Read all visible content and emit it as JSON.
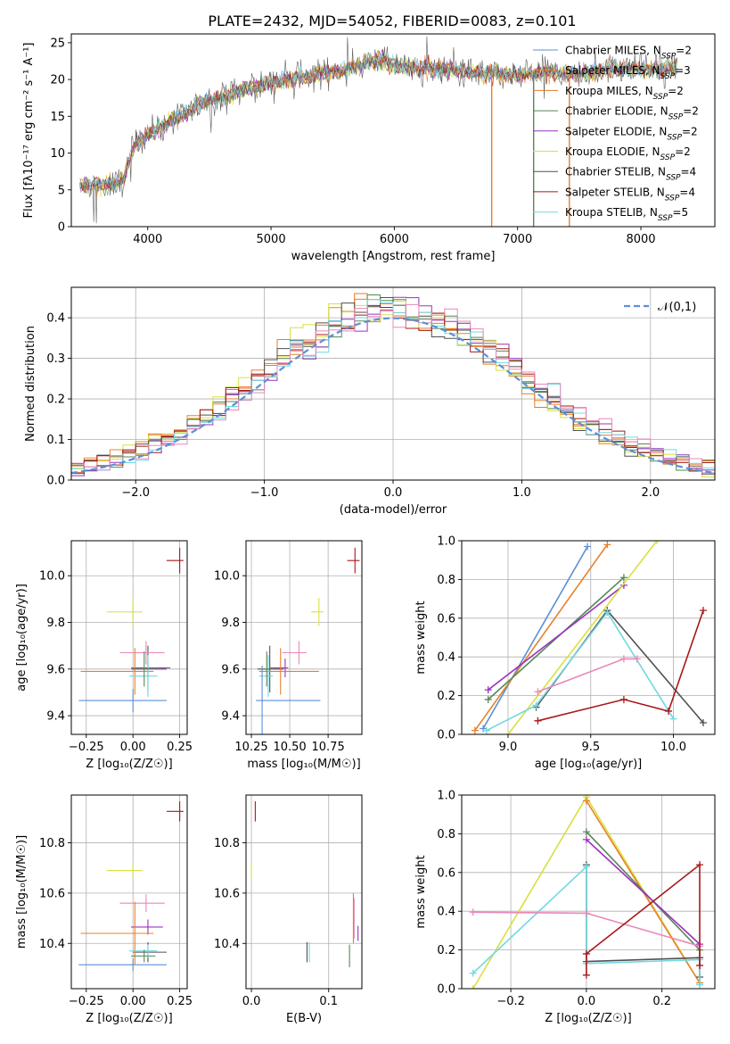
{
  "figure": {
    "title": "PLATE=2432, MJD=54052, FIBERID=0083, z=0.101"
  },
  "palette": {
    "series_colors": [
      "#5b8fd8",
      "#e8802a",
      "#e87a22",
      "#558855",
      "#9b30c0",
      "#d8e040",
      "#505050",
      "#a81818",
      "#70d8e0",
      "#e888b8"
    ]
  },
  "chart_data": [
    {
      "type": "line",
      "id": "spectrum",
      "title": "PLATE=2432, MJD=54052, FIBERID=0083, z=0.101",
      "xlabel": "wavelength [Angstrom, rest frame]",
      "ylabel": "Flux [fλ10⁻¹⁷ erg cm⁻² s⁻¹ A⁻¹]",
      "xlim": [
        3380,
        8600
      ],
      "ylim": [
        0,
        26.2
      ],
      "xticks": [
        4000,
        5000,
        6000,
        7000,
        8000
      ],
      "yticks": [
        0,
        5,
        10,
        15,
        20,
        25
      ],
      "grid": false,
      "legend_position": "right",
      "series": [
        {
          "name": "Chabrier MILES, N_SSP=2",
          "color": "#5b8fd8"
        },
        {
          "name": "Salpeter MILES, N_SSP=3",
          "color": "#e8802a"
        },
        {
          "name": "Kroupa MILES, N_SSP=2",
          "color": "#e87a22"
        },
        {
          "name": "Chabrier ELODIE, N_SSP=2",
          "color": "#558855"
        },
        {
          "name": "Salpeter ELODIE, N_SSP=2",
          "color": "#9b30c0"
        },
        {
          "name": "Kroupa ELODIE, N_SSP=2",
          "color": "#d8e040"
        },
        {
          "name": "Chabrier STELIB, N_SSP=4",
          "color": "#505050"
        },
        {
          "name": "Salpeter STELIB, N_SSP=4",
          "color": "#a81818"
        },
        {
          "name": "Kroupa STELIB, N_SSP=5",
          "color": "#70d8e0"
        }
      ],
      "continuum_points": [
        [
          3450,
          5.5
        ],
        [
          3550,
          5.8
        ],
        [
          3650,
          5.6
        ],
        [
          3800,
          6.2
        ],
        [
          3900,
          11.5
        ],
        [
          4000,
          12.5
        ],
        [
          4150,
          14.0
        ],
        [
          4300,
          15.2
        ],
        [
          4450,
          17.0
        ],
        [
          4600,
          17.5
        ],
        [
          4800,
          18.8
        ],
        [
          5000,
          19.5
        ],
        [
          5200,
          20.2
        ],
        [
          5400,
          20.8
        ],
        [
          5600,
          21.4
        ],
        [
          5800,
          22.5
        ],
        [
          5900,
          22.8
        ],
        [
          6000,
          21.8
        ],
        [
          6200,
          21.6
        ],
        [
          6400,
          21.3
        ],
        [
          6600,
          21.0
        ],
        [
          6800,
          20.8
        ],
        [
          7000,
          20.6
        ],
        [
          7200,
          21.0
        ],
        [
          7400,
          20.7
        ],
        [
          7600,
          21.0
        ],
        [
          7800,
          21.6
        ],
        [
          8000,
          21.4
        ],
        [
          8200,
          21.6
        ],
        [
          8300,
          21.7
        ]
      ],
      "spikes": [
        {
          "x": 6790,
          "color": "#e8802a"
        },
        {
          "x": 7420,
          "color": "#e8802a"
        },
        {
          "x": 7130,
          "color": "#558855"
        }
      ]
    },
    {
      "type": "histogram",
      "id": "residuals",
      "xlabel": "(data-model)/error",
      "ylabel": "Normed distribution",
      "xlim": [
        -2.5,
        2.5
      ],
      "ylim": [
        0,
        0.475
      ],
      "xticks": [
        -2,
        -1,
        0,
        1,
        2
      ],
      "yticks": [
        0.0,
        0.1,
        0.2,
        0.3,
        0.4
      ],
      "grid": true,
      "legend": {
        "label": "𝒩(0,1)",
        "position": "top-right",
        "color": "#5b8fd8"
      },
      "bin_width": 0.1
    },
    {
      "type": "scatter",
      "id": "age-vs-Z",
      "xlabel": "Z [log₁₀(Z/Z☉)]",
      "ylabel": "age  [log₁₀(age/yr)]",
      "xlim": [
        -0.33,
        0.29
      ],
      "ylim": [
        9.32,
        10.15
      ],
      "xticks": [
        -0.25,
        0.0,
        0.25
      ],
      "yticks": [
        9.4,
        9.6,
        9.8,
        10.0
      ],
      "grid": true,
      "points": [
        {
          "x": 0.25,
          "y": 10.065,
          "xerr": [
            0.07,
            0.02
          ],
          "yerr": 0.11,
          "color": "#a81818"
        },
        {
          "x": 0.0,
          "y": 9.845,
          "xerr": [
            0.14,
            0.05
          ],
          "yerr": 0.12,
          "color": "#d8e040"
        },
        {
          "x": 0.08,
          "y": 9.6,
          "xerr": [
            0.08,
            0.1
          ],
          "yerr": 0.2,
          "color": "#505050"
        },
        {
          "x": 0.08,
          "y": 9.605,
          "xerr": [
            0.09,
            0.12
          ],
          "yerr": 0.08,
          "color": "#9b30c0"
        },
        {
          "x": 0.07,
          "y": 9.67,
          "xerr": [
            0.14,
            0.1
          ],
          "yerr": 0.1,
          "color": "#e888b8"
        },
        {
          "x": 0.01,
          "y": 9.59,
          "xerr": [
            0.29,
            0.1
          ],
          "yerr": 0.2,
          "color": "#e8802a"
        },
        {
          "x": 0.08,
          "y": 9.57,
          "xerr": [
            0.1,
            0.05
          ],
          "yerr": 0.18,
          "color": "#70d8e0"
        },
        {
          "x": 0.06,
          "y": 9.6,
          "xerr": [
            0.07,
            0.06
          ],
          "yerr": 0.15,
          "color": "#558855"
        },
        {
          "x": 0.0,
          "y": 9.465,
          "xerr": [
            0.29,
            0.18
          ],
          "yerr": 0.1,
          "color": "#5b8fd8"
        }
      ]
    },
    {
      "type": "scatter",
      "id": "age-vs-mass",
      "xlabel": "mass [log₁₀(M/M☉)]",
      "ylabel": "",
      "xlim": [
        10.215,
        10.97
      ],
      "ylim": [
        9.32,
        10.15
      ],
      "xticks": [
        10.25,
        10.5,
        10.75
      ],
      "yticks": [
        9.4,
        9.6,
        9.8,
        10.0
      ],
      "grid": true,
      "points": [
        {
          "x": 10.925,
          "y": 10.065,
          "xerr": [
            0.05,
            0.03
          ],
          "yerr": 0.11,
          "color": "#a81818"
        },
        {
          "x": 10.69,
          "y": 9.845,
          "xerr": [
            0.05,
            0.03
          ],
          "yerr": 0.12,
          "color": "#d8e040"
        },
        {
          "x": 10.37,
          "y": 9.6,
          "xerr": [
            0.08,
            0.09
          ],
          "yerr": 0.2,
          "color": "#505050"
        },
        {
          "x": 10.47,
          "y": 9.605,
          "xerr": [
            0.1,
            0.02
          ],
          "yerr": 0.08,
          "color": "#9b30c0"
        },
        {
          "x": 10.56,
          "y": 9.67,
          "xerr": [
            0.11,
            0.05
          ],
          "yerr": 0.1,
          "color": "#e888b8"
        },
        {
          "x": 10.44,
          "y": 9.59,
          "xerr": [
            0.14,
            0.25
          ],
          "yerr": 0.2,
          "color": "#e8802a"
        },
        {
          "x": 10.36,
          "y": 9.57,
          "xerr": [
            0.06,
            0.03
          ],
          "yerr": 0.18,
          "color": "#70d8e0"
        },
        {
          "x": 10.35,
          "y": 9.6,
          "xerr": [
            0.04,
            0.05
          ],
          "yerr": 0.15,
          "color": "#558855"
        },
        {
          "x": 10.32,
          "y": 9.465,
          "xerr": [
            0.04,
            0.38
          ],
          "yerr": 0.3,
          "color": "#5b8fd8"
        }
      ]
    },
    {
      "type": "line",
      "id": "weight-vs-age",
      "xlabel": "age  [log₁₀(age/yr)]",
      "ylabel": "mass weight",
      "xlim": [
        8.72,
        10.25
      ],
      "ylim": [
        0,
        1.0
      ],
      "xticks": [
        9.0,
        9.5,
        10.0
      ],
      "yticks": [
        0.0,
        0.2,
        0.4,
        0.6,
        0.8,
        1.0
      ],
      "grid": true,
      "series": [
        {
          "color": "#5b8fd8",
          "x": [
            8.85,
            9.48
          ],
          "y": [
            0.03,
            0.97
          ]
        },
        {
          "color": "#e8802a",
          "x": [
            8.8,
            9.6
          ],
          "y": [
            0.02,
            0.98
          ]
        },
        {
          "color": "#558855",
          "x": [
            8.88,
            9.7
          ],
          "y": [
            0.18,
            0.81
          ]
        },
        {
          "color": "#9b30c0",
          "x": [
            8.88,
            9.7
          ],
          "y": [
            0.23,
            0.77
          ]
        },
        {
          "color": "#d8e040",
          "x": [
            9.0,
            9.9
          ],
          "y": [
            0.0,
            1.0
          ]
        },
        {
          "color": "#505050",
          "x": [
            9.17,
            9.6,
            10.18
          ],
          "y": [
            0.14,
            0.64,
            0.06
          ]
        },
        {
          "color": "#70d8e0",
          "x": [
            8.87,
            9.17,
            9.6,
            10.0
          ],
          "y": [
            0.02,
            0.15,
            0.63,
            0.08
          ]
        },
        {
          "color": "#e888b8",
          "x": [
            9.18,
            9.7,
            9.78
          ],
          "y": [
            0.22,
            0.39,
            0.39
          ]
        },
        {
          "color": "#a81818",
          "x": [
            9.18,
            9.7,
            9.97,
            10.18
          ],
          "y": [
            0.07,
            0.18,
            0.12,
            0.64
          ]
        }
      ]
    },
    {
      "type": "scatter",
      "id": "mass-vs-Z",
      "xlabel": "Z [log₁₀(Z/Z☉)]",
      "ylabel": "mass [log₁₀(M/M☉)]",
      "xlim": [
        -0.33,
        0.29
      ],
      "ylim": [
        10.22,
        10.99
      ],
      "xticks": [
        -0.25,
        0.0,
        0.25
      ],
      "yticks": [
        10.4,
        10.6,
        10.8
      ],
      "grid": true,
      "points": [
        {
          "x": 0.25,
          "y": 10.925,
          "xerr": [
            0.07,
            0.02
          ],
          "yerr": 0.08,
          "color": "#a81818"
        },
        {
          "x": 0.0,
          "y": 10.69,
          "xerr": [
            0.14,
            0.05
          ],
          "yerr": 0.06,
          "color": "#d8e040"
        },
        {
          "x": 0.08,
          "y": 10.365,
          "xerr": [
            0.08,
            0.1
          ],
          "yerr": 0.08,
          "color": "#505050"
        },
        {
          "x": 0.08,
          "y": 10.465,
          "xerr": [
            0.09,
            0.08
          ],
          "yerr": 0.06,
          "color": "#9b30c0"
        },
        {
          "x": 0.07,
          "y": 10.56,
          "xerr": [
            0.14,
            0.1
          ],
          "yerr": 0.07,
          "color": "#e888b8"
        },
        {
          "x": 0.01,
          "y": 10.44,
          "xerr": [
            0.29,
            0.1
          ],
          "yerr": 0.25,
          "color": "#e8802a"
        },
        {
          "x": 0.08,
          "y": 10.37,
          "xerr": [
            0.1,
            0.05
          ],
          "yerr": 0.05,
          "color": "#70d8e0"
        },
        {
          "x": 0.06,
          "y": 10.35,
          "xerr": [
            0.07,
            0.06
          ],
          "yerr": 0.05,
          "color": "#558855"
        },
        {
          "x": 0.0,
          "y": 10.315,
          "xerr": [
            0.29,
            0.18
          ],
          "yerr": 0.05,
          "color": "#5b8fd8"
        }
      ]
    },
    {
      "type": "scatter",
      "id": "mass-vs-ebv",
      "xlabel": "E(B-V)",
      "ylabel": "",
      "xlim": [
        -0.007,
        0.143
      ],
      "ylim": [
        10.22,
        10.99
      ],
      "xticks": [
        0.0,
        0.1
      ],
      "yticks": [
        10.4,
        10.6,
        10.8
      ],
      "grid": true,
      "points": [
        {
          "x": 0.005,
          "y": 10.925,
          "yerr": 0.08,
          "color": "#a81818"
        },
        {
          "x": 0.0,
          "y": 10.69,
          "yerr": 0.06,
          "color": "#d8e040"
        },
        {
          "x": 0.072,
          "y": 10.365,
          "yerr": 0.08,
          "color": "#505050"
        },
        {
          "x": 0.138,
          "y": 10.44,
          "yerr": 0.06,
          "color": "#9b30c0"
        },
        {
          "x": 0.133,
          "y": 10.5,
          "yerr": 0.16,
          "color": "#e888b8"
        },
        {
          "x": 0.132,
          "y": 10.5,
          "yerr": 0.2,
          "color": "#e8802a"
        },
        {
          "x": 0.075,
          "y": 10.365,
          "yerr": 0.08,
          "color": "#70d8e0"
        },
        {
          "x": 0.127,
          "y": 10.35,
          "yerr": 0.09,
          "color": "#558855"
        }
      ]
    },
    {
      "type": "line",
      "id": "weight-vs-Z",
      "xlabel": "Z [log₁₀(Z/Z☉)]",
      "ylabel": "mass weight",
      "xlim": [
        -0.33,
        0.34
      ],
      "ylim": [
        0,
        1.0
      ],
      "xticks": [
        -0.2,
        0.0,
        0.2
      ],
      "yticks": [
        0.0,
        0.2,
        0.4,
        0.6,
        0.8,
        1.0
      ],
      "grid": true,
      "series": [
        {
          "color": "#d8e040",
          "x": [
            -0.3,
            0.0,
            0.3
          ],
          "y": [
            0.0,
            0.99,
            0.03
          ]
        },
        {
          "color": "#e8802a",
          "x": [
            0.0,
            0.3
          ],
          "y": [
            0.97,
            0.03
          ]
        },
        {
          "color": "#558855",
          "x": [
            0.0,
            0.3,
            0.3
          ],
          "y": [
            0.81,
            0.2,
            0.16
          ]
        },
        {
          "color": "#9b30c0",
          "x": [
            0.0,
            0.3
          ],
          "y": [
            0.77,
            0.23
          ]
        },
        {
          "color": "#505050",
          "x": [
            0.0,
            0.0,
            0.3,
            0.3
          ],
          "y": [
            0.64,
            0.14,
            0.16,
            0.06
          ]
        },
        {
          "color": "#70d8e0",
          "x": [
            -0.3,
            0.0,
            0.0,
            0.3,
            0.3
          ],
          "y": [
            0.08,
            0.63,
            0.13,
            0.15,
            0.02
          ]
        },
        {
          "color": "#e888b8",
          "x": [
            -0.3,
            0.0,
            0.3
          ],
          "y": [
            0.395,
            0.39,
            0.22
          ]
        },
        {
          "color": "#a81818",
          "x": [
            0.0,
            0.0,
            0.3,
            0.3
          ],
          "y": [
            0.07,
            0.18,
            0.64,
            0.12
          ]
        }
      ]
    }
  ]
}
